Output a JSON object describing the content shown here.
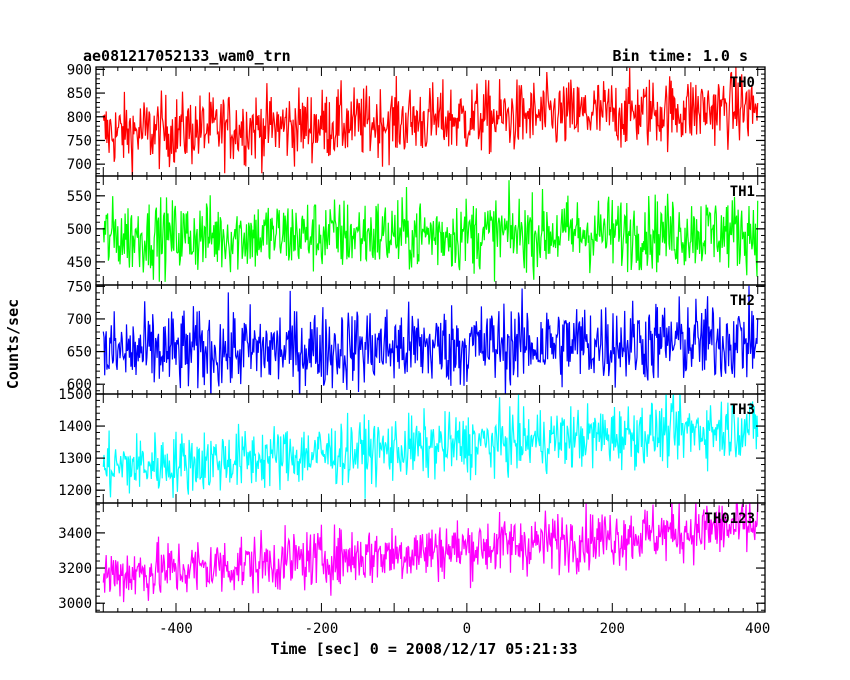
{
  "header": {
    "title": "ae081217052133_wam0_trn",
    "bin_time": "Bin time: 1.0 s"
  },
  "chart_data": {
    "type": "line",
    "xlabel": "Time [sec] 0 = 2008/12/17 05:21:33",
    "ylabel": "Counts/sec",
    "xlim": [
      -510,
      410
    ],
    "x_ticks": [
      -400,
      -200,
      0,
      200,
      400
    ],
    "x": {
      "start": -500,
      "end": 400,
      "step": 1
    },
    "grid": false,
    "panels": [
      {
        "name": "TH0",
        "color": "#ff0000",
        "ylim": [
          675,
          905
        ],
        "y_ticks": [
          700,
          750,
          800,
          850,
          900
        ],
        "trend": {
          "start": 765,
          "end": 820
        },
        "noise": 38
      },
      {
        "name": "TH1",
        "color": "#00ff00",
        "ylim": [
          415,
          580
        ],
        "y_ticks": [
          450,
          500,
          550
        ],
        "trend": {
          "start": 488,
          "end": 496
        },
        "noise": 28
      },
      {
        "name": "TH2",
        "color": "#0000ff",
        "ylim": [
          585,
          752
        ],
        "y_ticks": [
          600,
          650,
          700,
          750
        ],
        "trend": {
          "start": 648,
          "end": 668
        },
        "noise": 32
      },
      {
        "name": "TH3",
        "color": "#00ffff",
        "ylim": [
          1160,
          1500
        ],
        "y_ticks": [
          1200,
          1300,
          1400,
          1500
        ],
        "trend": {
          "start": 1270,
          "end": 1400
        },
        "noise": 50
      },
      {
        "name": "TH0123",
        "color": "#ff00ff",
        "ylim": [
          2950,
          3570
        ],
        "y_ticks": [
          3000,
          3200,
          3400
        ],
        "trend": {
          "start": 3160,
          "end": 3440
        },
        "noise": 85
      }
    ]
  }
}
